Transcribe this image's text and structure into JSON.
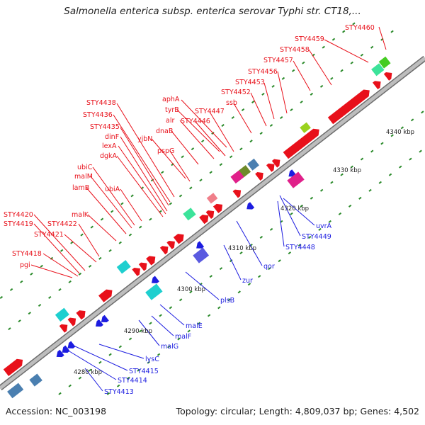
{
  "title": "Salmonella enterica subsp. enterica serovar Typhi str. CT18,...",
  "accession": "Accession: NC_003198",
  "summary": "Topology: circular; Length: 4,809,037 bp; Genes: 4,502",
  "colors": {
    "forward": "#e8101a",
    "reverse": "#1c1ce0",
    "backbone": "#9a9a9a",
    "ticks": "#2a8a2a"
  },
  "ticks": [
    "4280 kbp",
    "4290 kbp",
    "4300 kbp",
    "4310 kbp",
    "4320 kbp",
    "4330 kbp",
    "4340 kbp"
  ],
  "forward_labels": [
    "STY4460",
    "STY4459",
    "STY4458",
    "STY4457",
    "STY4456",
    "STY4453",
    "STY4452",
    "ssb",
    "aphA",
    "tyrB",
    "STY4447",
    "alr",
    "STY4446",
    "dnaB",
    "STY4438",
    "STY4436",
    "yjbN",
    "pspG",
    "STY4435",
    "dinF",
    "lexA",
    "dgkA",
    "ubiC",
    "malM",
    "ubiA",
    "lamB",
    "STY4420",
    "STY4419",
    "malK",
    "STY4422",
    "STY4421",
    "STY4418",
    "pgi"
  ],
  "reverse_labels": [
    "uvrA",
    "STY4449",
    "STY4448",
    "qor",
    "zur",
    "plsB",
    "malE",
    "malF",
    "malG",
    "lysC",
    "STY4415",
    "STY4414",
    "STY4413"
  ]
}
